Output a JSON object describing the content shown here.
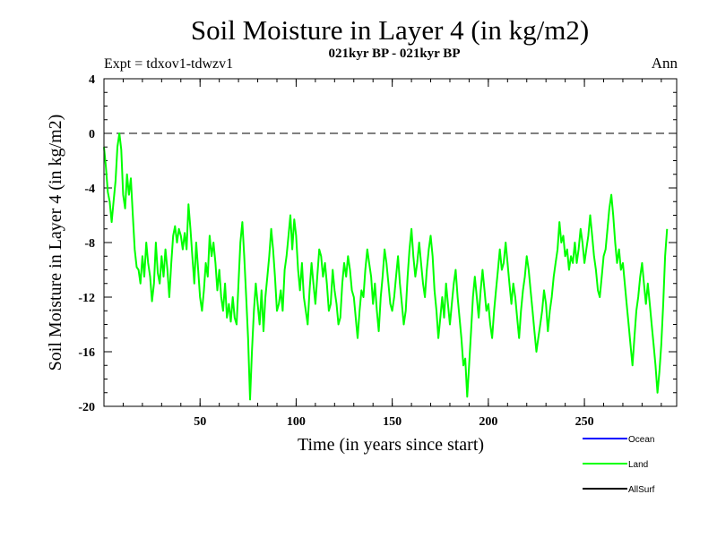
{
  "chart_data": {
    "type": "line",
    "title": "Soil Moisture in Layer 4 (in kg/m2)",
    "subtitle": "021kyr BP - 021kyr BP",
    "expt_label": "Expt = tdxov1-tdwzv1",
    "period_label": "Ann",
    "xlabel": "Time (in years since start)",
    "ylabel": "Soil Moisture in Layer 4 (in kg/m2)",
    "xlim": [
      0,
      298
    ],
    "ylim": [
      -20,
      4
    ],
    "x_ticks": [
      50,
      100,
      150,
      200,
      250
    ],
    "y_ticks": [
      4,
      0,
      -4,
      -8,
      -12,
      -16,
      -20
    ],
    "reference_line": 0,
    "legend": [
      {
        "name": "Ocean",
        "color": "#0000ff"
      },
      {
        "name": "Land",
        "color": "#00ff00"
      },
      {
        "name": "AllSurf",
        "color": "#000000"
      }
    ],
    "series": [
      {
        "name": "Land",
        "color": "#00ff00",
        "x_start": 0,
        "x_step": 1,
        "values": [
          -1.0,
          -2.4,
          -4.3,
          -5.0,
          -6.5,
          -5.0,
          -3.5,
          -1.0,
          0.0,
          -1.2,
          -4.5,
          -5.5,
          -3.0,
          -4.5,
          -3.3,
          -6.0,
          -8.5,
          -9.8,
          -10.0,
          -11.0,
          -9.0,
          -10.5,
          -8.0,
          -9.5,
          -10.5,
          -12.3,
          -11.0,
          -8.0,
          -10.2,
          -11.0,
          -9.0,
          -10.5,
          -8.5,
          -10.0,
          -12.0,
          -9.5,
          -7.5,
          -6.8,
          -8.0,
          -7.0,
          -7.5,
          -8.5,
          -7.3,
          -8.5,
          -5.2,
          -7.0,
          -9.0,
          -11.0,
          -8.0,
          -10.0,
          -12.0,
          -13.0,
          -11.5,
          -9.5,
          -10.5,
          -7.5,
          -9.0,
          -8.0,
          -9.5,
          -11.5,
          -10.0,
          -12.0,
          -13.0,
          -11.0,
          -13.5,
          -12.5,
          -13.8,
          -12.0,
          -13.5,
          -14.0,
          -11.0,
          -8.0,
          -6.5,
          -9.0,
          -12.0,
          -15.0,
          -19.5,
          -16.0,
          -13.0,
          -11.0,
          -12.5,
          -14.0,
          -11.5,
          -14.5,
          -12.0,
          -10.5,
          -9.0,
          -7.0,
          -8.5,
          -10.5,
          -13.0,
          -12.5,
          -11.5,
          -13.0,
          -10.0,
          -9.0,
          -7.5,
          -6.0,
          -8.5,
          -6.3,
          -7.5,
          -10.0,
          -11.5,
          -9.5,
          -12.0,
          -13.0,
          -14.0,
          -11.5,
          -9.5,
          -11.0,
          -12.5,
          -10.5,
          -8.5,
          -9.0,
          -10.5,
          -9.5,
          -11.0,
          -13.0,
          -12.5,
          -10.0,
          -11.5,
          -12.5,
          -14.0,
          -13.5,
          -11.0,
          -9.5,
          -10.5,
          -9.0,
          -10.0,
          -11.5,
          -12.0,
          -13.5,
          -15.0,
          -13.0,
          -11.5,
          -12.0,
          -10.0,
          -8.5,
          -9.5,
          -10.5,
          -12.5,
          -11.0,
          -13.0,
          -14.5,
          -12.0,
          -10.5,
          -8.5,
          -9.5,
          -11.0,
          -12.5,
          -13.0,
          -12.0,
          -10.5,
          -9.0,
          -11.0,
          -12.5,
          -14.0,
          -13.0,
          -10.5,
          -8.5,
          -7.0,
          -9.0,
          -10.5,
          -9.5,
          -8.0,
          -9.5,
          -11.0,
          -12.0,
          -10.0,
          -8.5,
          -7.5,
          -9.0,
          -11.5,
          -13.0,
          -15.0,
          -13.5,
          -12.0,
          -13.5,
          -11.0,
          -12.5,
          -14.0,
          -12.5,
          -11.0,
          -10.0,
          -12.0,
          -13.5,
          -15.0,
          -17.0,
          -16.5,
          -19.3,
          -17.0,
          -14.5,
          -12.0,
          -10.5,
          -12.0,
          -13.5,
          -11.5,
          -10.0,
          -11.5,
          -13.0,
          -12.5,
          -14.0,
          -15.0,
          -13.0,
          -11.5,
          -10.0,
          -8.5,
          -10.0,
          -9.5,
          -8.0,
          -9.5,
          -11.0,
          -12.5,
          -11.0,
          -12.0,
          -13.5,
          -15.0,
          -13.0,
          -11.5,
          -10.5,
          -9.0,
          -10.0,
          -11.5,
          -13.0,
          -14.5,
          -16.0,
          -15.0,
          -14.0,
          -13.0,
          -11.5,
          -12.5,
          -14.5,
          -13.0,
          -12.0,
          -10.5,
          -9.5,
          -8.5,
          -6.5,
          -8.0,
          -7.5,
          -9.0,
          -8.5,
          -10.0,
          -9.0,
          -9.5,
          -8.0,
          -9.5,
          -8.5,
          -7.0,
          -8.0,
          -9.5,
          -8.5,
          -7.5,
          -6.0,
          -7.5,
          -9.0,
          -10.0,
          -11.5,
          -12.0,
          -10.5,
          -9.0,
          -8.5,
          -7.0,
          -5.5,
          -4.5,
          -6.0,
          -8.0,
          -9.5,
          -8.5,
          -10.0,
          -9.5,
          -11.0,
          -12.5,
          -14.0,
          -15.5,
          -17.0,
          -15.0,
          -13.0,
          -12.0,
          -10.5,
          -9.5,
          -11.0,
          -12.5,
          -11.0,
          -12.5,
          -14.0,
          -15.5,
          -17.0,
          -19.0,
          -17.5,
          -15.5,
          -12.5,
          -9.0,
          -7.0
        ]
      }
    ]
  }
}
